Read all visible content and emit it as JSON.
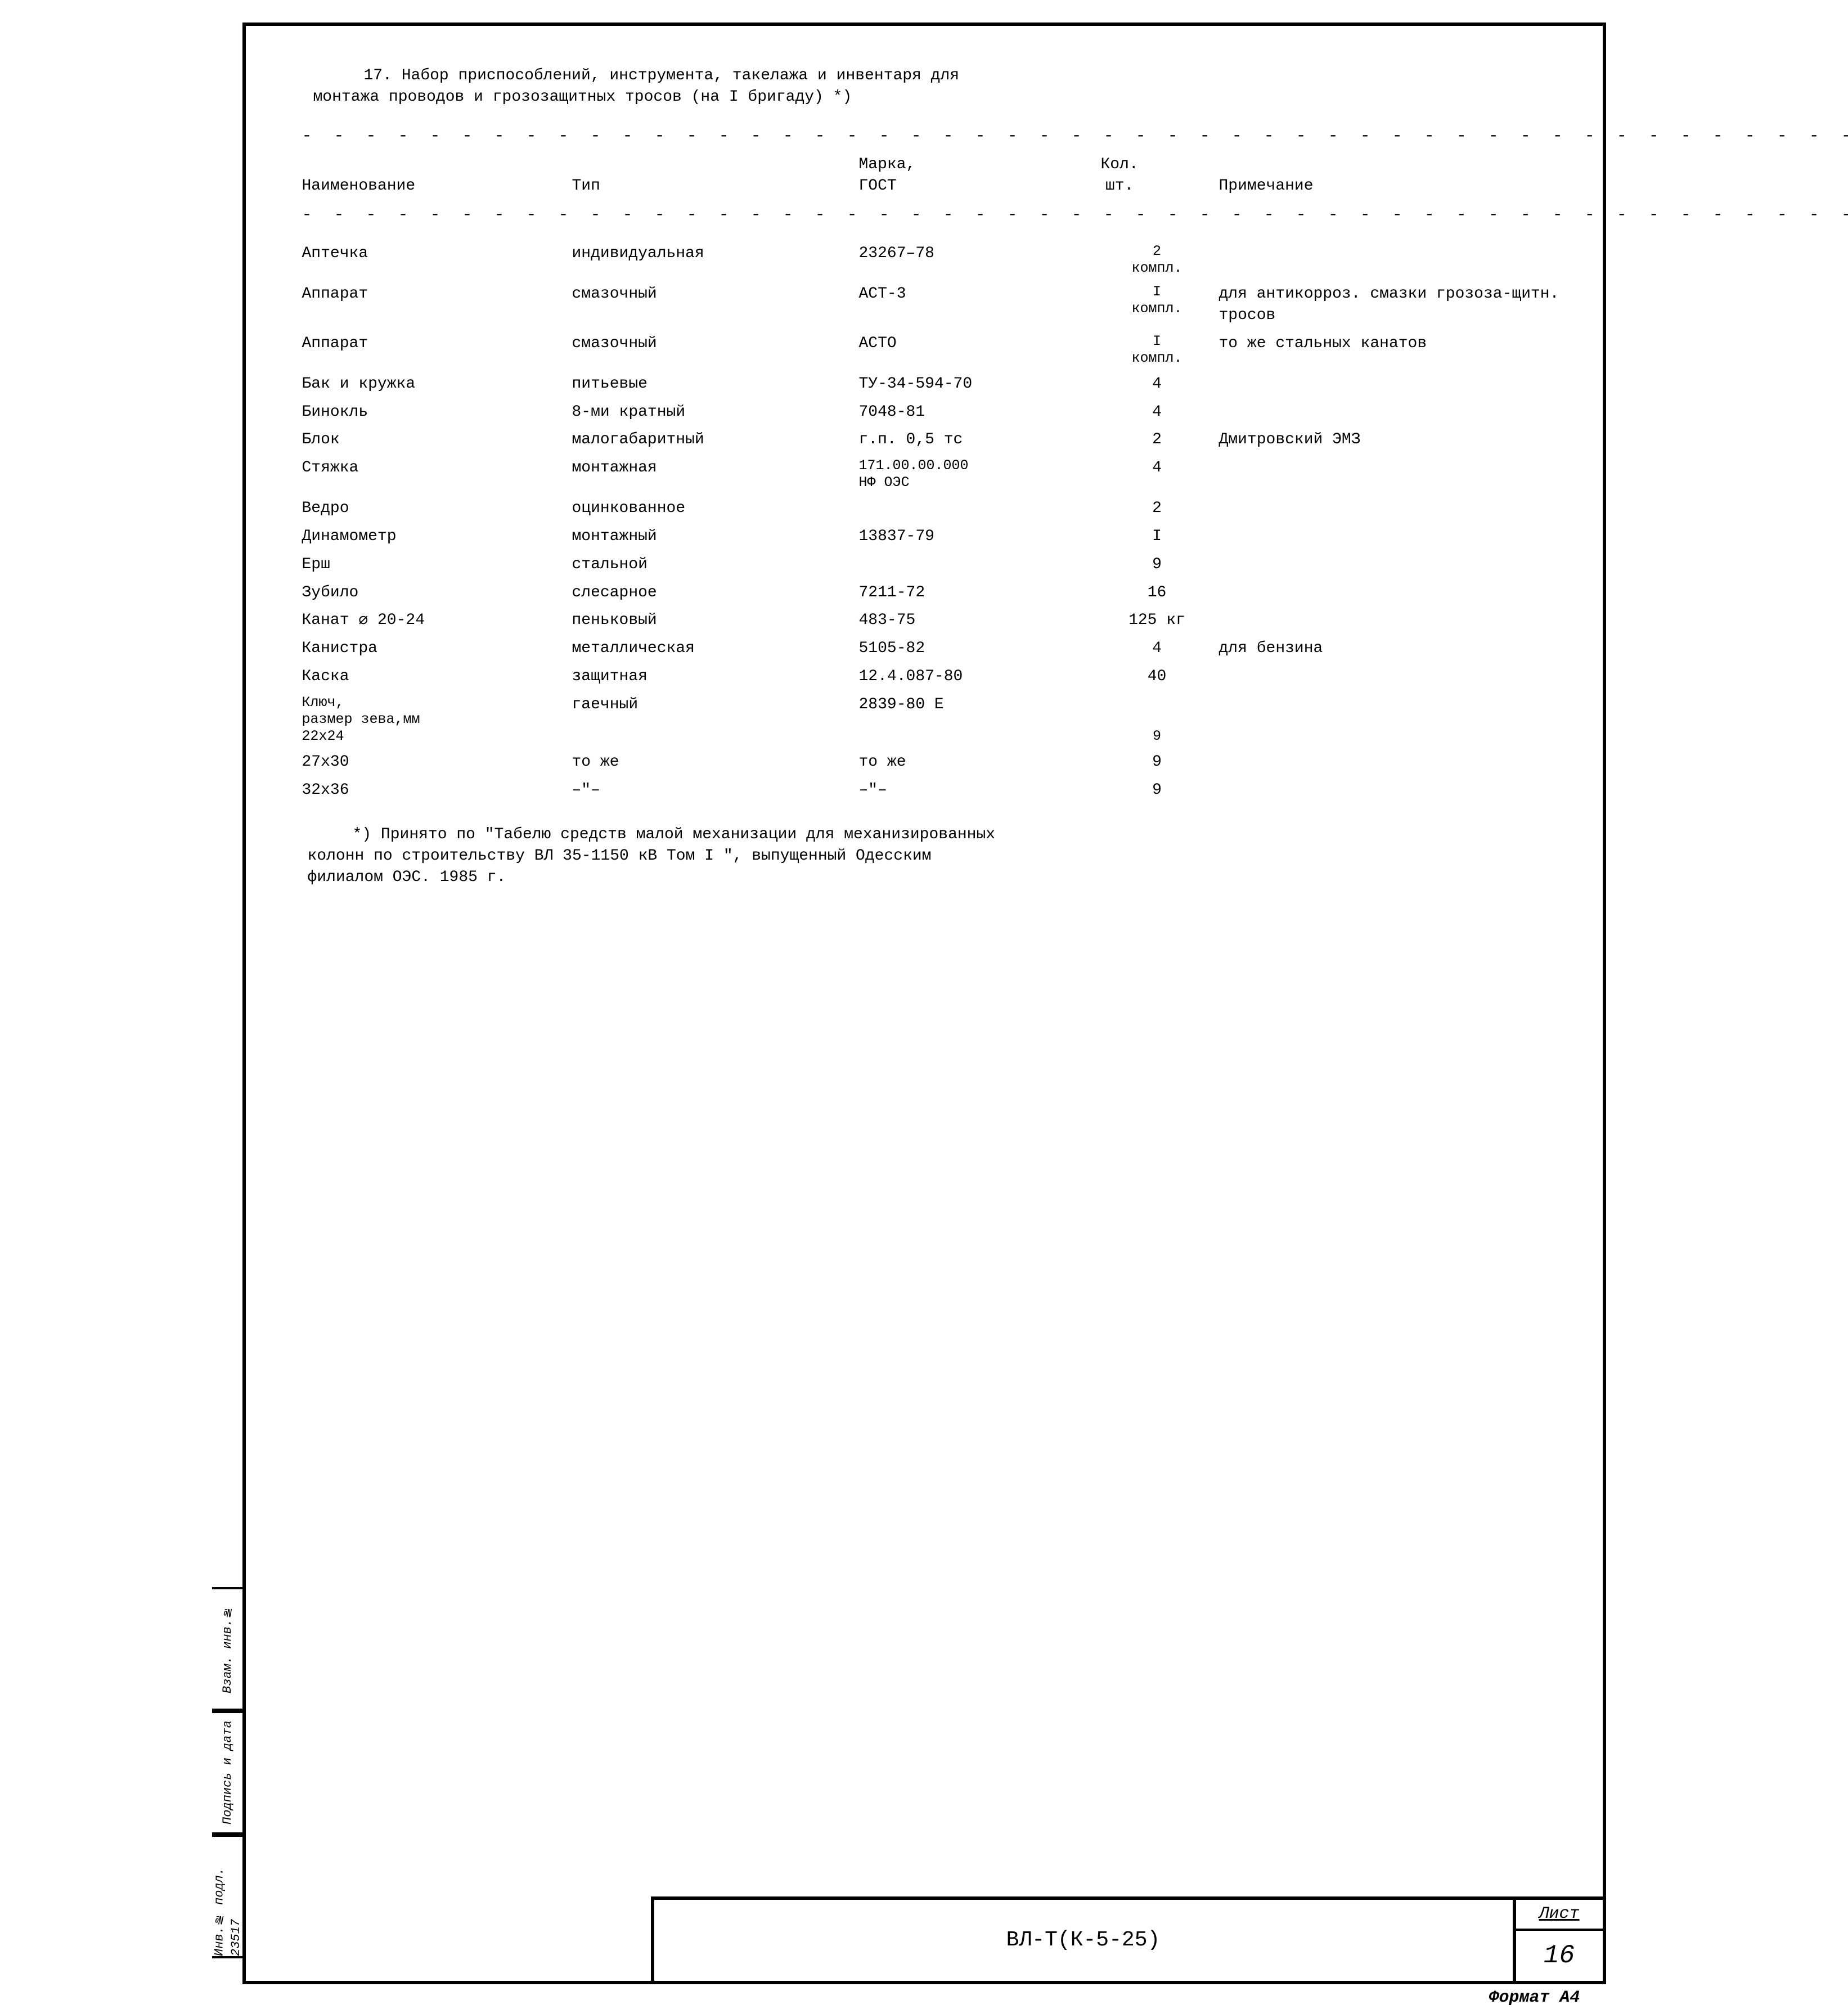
{
  "heading": {
    "line1": "17. Набор приспособлений, инструмента, такелажа и инвентаря для",
    "line2": "монтажа проводов и грозозащитных тросов (на I бригаду) *)"
  },
  "columns": {
    "name": "Наименование",
    "type": "Тип",
    "gost1": "Марка,",
    "gost2": "ГОСТ",
    "qty1": "Кол.",
    "qty2": "шт.",
    "note": "Примечание"
  },
  "rows": [
    {
      "name": "Аптечка",
      "type": "индивидуальная",
      "gost": "23267–78",
      "qty": "2\nкомпл.",
      "note": ""
    },
    {
      "name": "Аппарат",
      "type": "смазочный",
      "gost": "АСТ-3",
      "qty": "I\nкомпл.",
      "note": "для антикорроз. смазки грозоза-щитн. тросов"
    },
    {
      "name": "Аппарат",
      "type": "смазочный",
      "gost": "АСТО",
      "qty": "I\nкомпл.",
      "note": "то же стальных канатов"
    },
    {
      "name": "Бак и кружка",
      "type": "питьевые",
      "gost": "ТУ-34-594-70",
      "qty": "4",
      "note": ""
    },
    {
      "name": "Бинокль",
      "type": "8-ми кратный",
      "gost": "7048-81",
      "qty": "4",
      "note": ""
    },
    {
      "name": "Блок",
      "type": "малогабаритный",
      "gost": "г.п. 0,5 тс",
      "qty": "2",
      "note": "Дмитровский ЭМЗ"
    },
    {
      "name": "Стяжка",
      "type": "монтажная",
      "gost": "171.00.00.000\nНФ ОЭС",
      "qty": "4",
      "note": ""
    },
    {
      "name": "Ведро",
      "type": "оцинкованное",
      "gost": "",
      "qty": "2",
      "note": ""
    },
    {
      "name": "Динамометр",
      "type": "монтажный",
      "gost": "13837-79",
      "qty": "I",
      "note": ""
    },
    {
      "name": "Ерш",
      "type": "стальной",
      "gost": "",
      "qty": "9",
      "note": ""
    },
    {
      "name": "Зубило",
      "type": "слесарное",
      "gost": "7211-72",
      "qty": "16",
      "note": ""
    },
    {
      "name": "Канат ⌀ 20-24",
      "type": "пеньковый",
      "gost": "483-75",
      "qty": "125 кг",
      "note": ""
    },
    {
      "name": "Канистра",
      "type": "металлическая",
      "gost": "5105-82",
      "qty": "4",
      "note": "для бензина"
    },
    {
      "name": "Каска",
      "type": "защитная",
      "gost": "12.4.087-80",
      "qty": "40",
      "note": ""
    },
    {
      "name": "Ключ,\n  размер зева,мм\n        22x24",
      "type": "гаечный",
      "gost": "2839-80 Е",
      "qty": "\n\n9",
      "note": ""
    },
    {
      "name": "        27x30",
      "type": "то же",
      "gost": "то же",
      "qty": "9",
      "note": ""
    },
    {
      "name": "        32x36",
      "type": "–\"–",
      "gost": "–\"–",
      "qty": "9",
      "note": ""
    }
  ],
  "footnote": {
    "l1": "*) Принято по \"Табелю средств малой механизации для механизированных",
    "l2": "колонн по строительству ВЛ 35-1150 кВ Том I \", выпущенный Одесским",
    "l3": "филиалом ОЭС. 1985 г."
  },
  "stamp": {
    "code": "ВЛ-Т(К-5-25)",
    "sheet_label": "Лист",
    "sheet_num": "16"
  },
  "format": "Формат А4",
  "side": {
    "b1": "Инв.№ подл.\n23517",
    "b2": "Подпись и дата",
    "b3": "Взам. инв.№"
  }
}
